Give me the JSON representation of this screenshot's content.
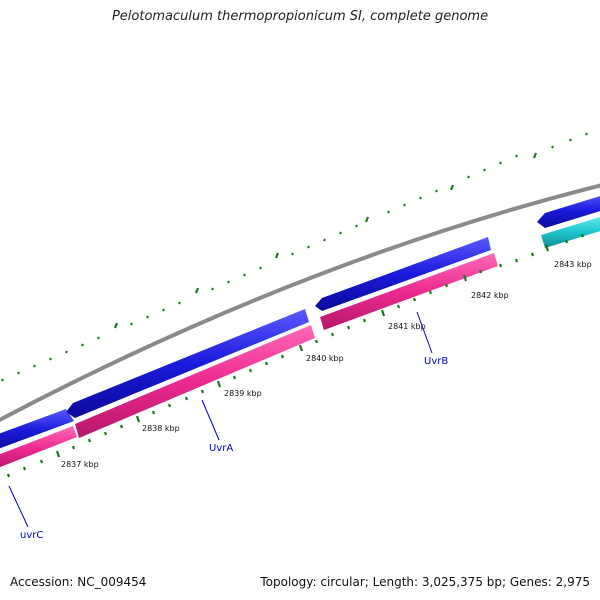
{
  "title": "Pelotomaculum thermopropionicum SI, complete genome",
  "accession": "Accession: NC_009454",
  "summary": "Topology: circular; Length: 3,025,375 bp; Genes: 2,975",
  "colors": {
    "backbone": "#8a8a8a",
    "forward_cds": "#1a1adc",
    "reverse_cds": "#ec2a90",
    "cyan_feature": "#21c8cf",
    "ticks": "#1a7a1a",
    "gene_label": "#0000cc"
  },
  "scale_labels": [
    "2837 kbp",
    "2838 kbp",
    "2839 kbp",
    "2840 kbp",
    "2841 kbp",
    "2842 kbp",
    "2843 kbp"
  ],
  "gene_labels": [
    "uvrC",
    "UvrA",
    "UvrB"
  ]
}
